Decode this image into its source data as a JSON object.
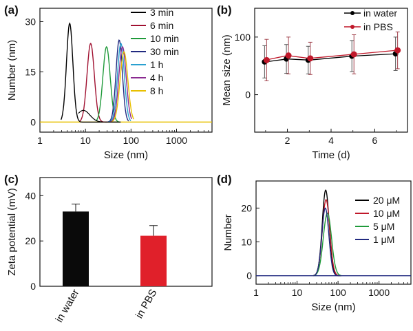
{
  "chart_data": [
    {
      "label": "(a)",
      "type": "line",
      "xlabel": "Size (nm)",
      "ylabel": "Number (nm)",
      "xscale": "log",
      "xlim": [
        1,
        6000
      ],
      "ylim": [
        -3,
        34
      ],
      "xticks": [
        1,
        10,
        100,
        1000
      ],
      "xtick_labels": [
        "1",
        "10",
        "100",
        "1000"
      ],
      "yticks": [
        0,
        15,
        30
      ],
      "ytick_labels": [
        "0",
        "15",
        "30"
      ],
      "legend_position": "top-right",
      "series": [
        {
          "name": "3 min",
          "color": "#000000",
          "peak_x": 4.5,
          "peak_y": 29.5,
          "start_x": 2.9,
          "end_x": 60
        },
        {
          "name": "6 min",
          "color": "#a01030",
          "peak_x": 13,
          "peak_y": 23.5,
          "start_x": 7.5,
          "end_x": 30
        },
        {
          "name": "10 min",
          "color": "#1f9a3a",
          "peak_x": 29,
          "peak_y": 22.5,
          "start_x": 17,
          "end_x": 55
        },
        {
          "name": "30 min",
          "color": "#222a80",
          "peak_x": 55,
          "peak_y": 24.5,
          "start_x": 30,
          "end_x": 90
        },
        {
          "name": "1 h",
          "color": "#2aa0d0",
          "peak_x": 60,
          "peak_y": 23.5,
          "start_x": 32,
          "end_x": 100
        },
        {
          "name": "4 h",
          "color": "#8a2a90",
          "peak_x": 65,
          "peak_y": 22.5,
          "start_x": 35,
          "end_x": 105
        },
        {
          "name": "8 h",
          "color": "#e8c000",
          "peak_x": 70,
          "peak_y": 21.0,
          "start_x": 38,
          "end_x": 115
        }
      ]
    },
    {
      "label": "(b)",
      "type": "line",
      "xlabel": "Time (d)",
      "ylabel": "Mean size (nm)",
      "xlim": [
        0.5,
        7.5
      ],
      "ylim": [
        -65,
        150
      ],
      "xticks": [
        2,
        4,
        6
      ],
      "xtick_labels": [
        "2",
        "4",
        "6"
      ],
      "yticks": [
        0,
        100
      ],
      "ytick_labels": [
        "0",
        "100"
      ],
      "legend_position": "top-right",
      "x": [
        1,
        2,
        3,
        5,
        7
      ],
      "series": [
        {
          "name": "in water",
          "color": "#000000",
          "values": [
            57,
            62,
            60,
            67,
            71
          ],
          "errors": [
            28,
            25,
            24,
            27,
            29
          ]
        },
        {
          "name": "in PBS",
          "color": "#c0182a",
          "values": [
            60,
            68,
            63,
            70,
            77
          ],
          "errors": [
            36,
            32,
            28,
            34,
            32
          ]
        }
      ]
    },
    {
      "label": "(c)",
      "type": "bar",
      "ylabel": "Zeta potential (mV)",
      "ylim": [
        0,
        48
      ],
      "yticks": [
        0,
        20,
        40
      ],
      "ytick_labels": [
        "0",
        "20",
        "40"
      ],
      "categories": [
        "in water",
        "in PBS"
      ],
      "values": [
        33,
        22.3
      ],
      "errors": [
        3.3,
        4.5
      ],
      "colors": [
        "#0a0a0a",
        "#e0202a"
      ]
    },
    {
      "label": "(d)",
      "type": "line",
      "xlabel": "Size (nm)",
      "ylabel": "Number",
      "xscale": "log",
      "xlim": [
        1,
        6000
      ],
      "ylim": [
        -2.5,
        28
      ],
      "xticks": [
        1,
        10,
        100,
        1000
      ],
      "xtick_labels": [
        "1",
        "10",
        "100",
        "1000"
      ],
      "yticks": [
        0,
        10,
        20
      ],
      "ytick_labels": [
        "0",
        "10",
        "20"
      ],
      "legend_position": "top-right",
      "series": [
        {
          "name": "20 μM",
          "color": "#000000",
          "peak_x": 50,
          "peak_y": 25.3
        },
        {
          "name": "10 μM",
          "color": "#c0182a",
          "peak_x": 51,
          "peak_y": 22.5
        },
        {
          "name": "5 μM",
          "color": "#1f9a3a",
          "peak_x": 55,
          "peak_y": 18.5
        },
        {
          "name": "1 μM",
          "color": "#222a80",
          "peak_x": 49,
          "peak_y": 20.0
        }
      ]
    }
  ]
}
